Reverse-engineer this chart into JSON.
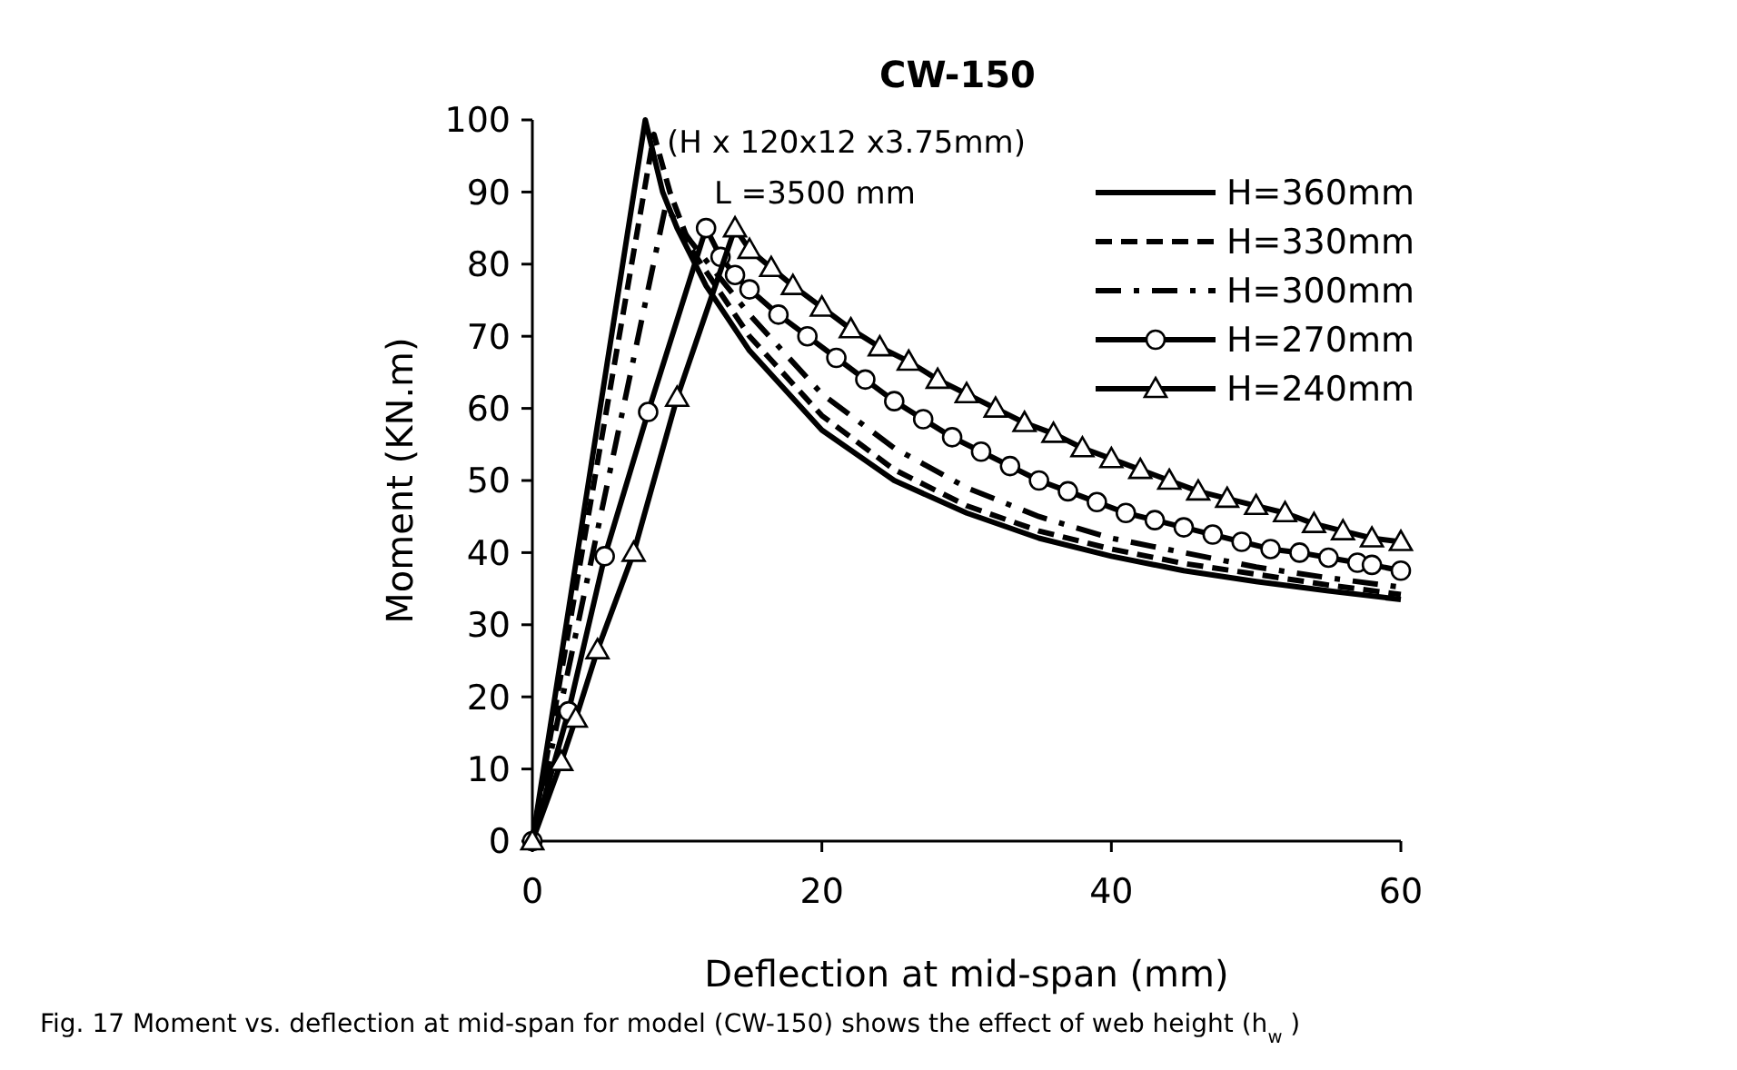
{
  "chart_data": {
    "type": "line",
    "title": "CW-150",
    "xlabel": "Deflection at mid-span (mm)",
    "ylabel": "Moment (KN.m)",
    "annotations": [
      "(H x 120x12 x3.75mm)",
      "L =3500 mm",
      "Fig. 17  Moment vs. deflection at mid-span for model (CW-150) shows the effect of web height (h$_{w}$)"
    ],
    "xlim": [
      0,
      60
    ],
    "ylim": [
      0,
      100
    ],
    "xticks": [
      0,
      20,
      40,
      60
    ],
    "yticks": [
      0,
      10,
      20,
      30,
      40,
      50,
      60,
      70,
      80,
      90,
      100
    ],
    "grid": false,
    "legend": "top right",
    "series": [
      {
        "name": "H=360mm",
        "color": "#000000",
        "line_style": "solid",
        "marker": "none",
        "x": [
          0,
          7.8,
          9,
          10,
          12,
          15,
          20,
          25,
          30,
          35,
          40,
          45,
          50,
          55,
          60
        ],
        "values": [
          0,
          100,
          90,
          85,
          77,
          68,
          57,
          50,
          45.5,
          42,
          39.5,
          37.5,
          36,
          34.7,
          33.5
        ]
      },
      {
        "name": "H=330mm",
        "color": "#000000",
        "line_style": "dashed",
        "marker": "none",
        "x": [
          0,
          8.4,
          9.5,
          11,
          13,
          15,
          20,
          25,
          30,
          35,
          40,
          45,
          50,
          55,
          60
        ],
        "values": [
          0,
          98,
          90,
          82,
          76,
          70,
          59,
          51.5,
          46.5,
          43,
          40.5,
          38.5,
          37,
          35.5,
          34.2
        ]
      },
      {
        "name": "H=300mm",
        "color": "#000000",
        "line_style": "dashdot",
        "marker": "none",
        "x": [
          0,
          9.2,
          11,
          13,
          15,
          20,
          25,
          30,
          35,
          40,
          45,
          50,
          55,
          60
        ],
        "values": [
          0,
          88,
          83,
          78,
          73,
          62,
          54.5,
          49,
          45,
          42,
          40,
          38,
          36.5,
          35.2
        ]
      },
      {
        "name": "H=270mm",
        "color": "#000000",
        "line_style": "solid",
        "marker": "circle",
        "x": [
          0,
          2.5,
          5,
          8,
          12,
          13,
          14,
          15,
          17,
          19,
          21,
          23,
          25,
          27,
          29,
          31,
          33,
          35,
          37,
          39,
          41,
          43,
          45,
          47,
          49,
          51,
          53,
          55,
          57,
          58,
          60
        ],
        "values": [
          0,
          18,
          39.5,
          59.5,
          85,
          81,
          78.5,
          76.5,
          73,
          70,
          67,
          64,
          61,
          58.5,
          56,
          54,
          52,
          50,
          48.5,
          47,
          45.5,
          44.5,
          43.5,
          42.5,
          41.5,
          40.5,
          40,
          39.3,
          38.6,
          38.3,
          37.5
        ]
      },
      {
        "name": "H=240mm",
        "color": "#000000",
        "line_style": "solid",
        "marker": "triangle",
        "x": [
          0,
          2,
          3,
          4.5,
          7,
          10,
          14,
          15,
          16.5,
          18,
          20,
          22,
          24,
          26,
          28,
          30,
          32,
          34,
          36,
          38,
          40,
          42,
          44,
          46,
          48,
          50,
          52,
          54,
          56,
          58,
          60
        ],
        "values": [
          0,
          11,
          17,
          26.5,
          40,
          61.5,
          85,
          82,
          79.5,
          77,
          74,
          71,
          68.5,
          66.5,
          64,
          62,
          60,
          58,
          56.5,
          54.5,
          53,
          51.5,
          50,
          48.5,
          47.5,
          46.5,
          45.5,
          44,
          43,
          42,
          41.5
        ]
      }
    ]
  }
}
